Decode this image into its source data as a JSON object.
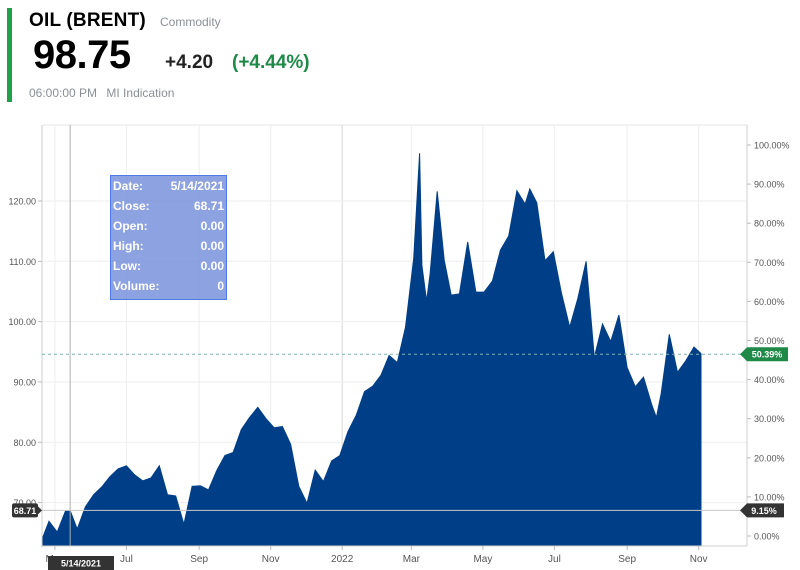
{
  "quote": {
    "name": "OIL (BRENT)",
    "type": "Commodity",
    "price": "98.75",
    "change": "+4.20",
    "change_pct": "(+4.44%)",
    "time": "06:00:00 PM",
    "indication": "MI Indication",
    "up_color": "#21a04a"
  },
  "tooltip": [
    {
      "key": "Date:",
      "value": "5/14/2021"
    },
    {
      "key": "Close:",
      "value": "68.71"
    },
    {
      "key": "Open:",
      "value": "0.00"
    },
    {
      "key": "High:",
      "value": "0.00"
    },
    {
      "key": "Low:",
      "value": "0.00"
    },
    {
      "key": "Volume:",
      "value": "0"
    }
  ],
  "chart_data": {
    "type": "area",
    "color": "#003f87",
    "yticks_left": [
      "120.00",
      "110.00",
      "100.00",
      "90.00",
      "80.00",
      "70.00"
    ],
    "yticks_right": [
      "100.00%",
      "90.00%",
      "80.00%",
      "70.00%",
      "60.00%",
      "50.00%",
      "40.00%",
      "30.00%",
      "20.00%",
      "10.00%",
      "0.00%"
    ],
    "xticks": [
      "May",
      "Jul",
      "Sep",
      "Nov",
      "2022",
      "Mar",
      "May",
      "Jul",
      "Sep",
      "Nov"
    ],
    "ylim": [
      62.8,
      132.6
    ],
    "crosshair": {
      "date": "5/14/2021",
      "value": 68.71,
      "label_left": "68.71",
      "label_right": "9.15%",
      "label_bottom": "5/14/2021"
    },
    "last_marker": {
      "value": 94.6,
      "label": "50.39%"
    },
    "x": [
      "2021-04-20",
      "2021-04-26",
      "2021-05-03",
      "2021-05-10",
      "2021-05-14",
      "2021-05-20",
      "2021-05-27",
      "2021-06-03",
      "2021-06-10",
      "2021-06-17",
      "2021-06-24",
      "2021-07-01",
      "2021-07-08",
      "2021-07-15",
      "2021-07-22",
      "2021-07-29",
      "2021-08-05",
      "2021-08-12",
      "2021-08-19",
      "2021-08-26",
      "2021-09-02",
      "2021-09-09",
      "2021-09-16",
      "2021-09-23",
      "2021-09-30",
      "2021-10-07",
      "2021-10-14",
      "2021-10-21",
      "2021-10-28",
      "2021-11-04",
      "2021-11-11",
      "2021-11-18",
      "2021-11-25",
      "2021-12-02",
      "2021-12-09",
      "2021-12-16",
      "2021-12-23",
      "2021-12-30",
      "2022-01-06",
      "2022-01-13",
      "2022-01-20",
      "2022-01-27",
      "2022-02-03",
      "2022-02-10",
      "2022-02-17",
      "2022-02-24",
      "2022-03-03",
      "2022-03-08",
      "2022-03-10",
      "2022-03-14",
      "2022-03-17",
      "2022-03-23",
      "2022-03-29",
      "2022-04-04",
      "2022-04-11",
      "2022-04-18",
      "2022-04-25",
      "2022-05-02",
      "2022-05-09",
      "2022-05-16",
      "2022-05-23",
      "2022-05-30",
      "2022-06-06",
      "2022-06-10",
      "2022-06-16",
      "2022-06-23",
      "2022-06-30",
      "2022-07-07",
      "2022-07-14",
      "2022-07-21",
      "2022-07-28",
      "2022-08-04",
      "2022-08-11",
      "2022-08-18",
      "2022-08-25",
      "2022-09-01",
      "2022-09-08",
      "2022-09-15",
      "2022-09-22",
      "2022-09-26",
      "2022-09-30",
      "2022-10-07",
      "2022-10-14",
      "2022-10-21",
      "2022-10-28",
      "2022-11-03"
    ],
    "values": [
      63.9,
      66.9,
      65.1,
      68.6,
      68.7,
      65.6,
      69.3,
      71.3,
      72.6,
      74.3,
      75.6,
      76.1,
      74.6,
      73.6,
      74.1,
      76.1,
      71.3,
      71.1,
      66.4,
      72.7,
      72.8,
      72.1,
      75.3,
      77.8,
      78.3,
      82.1,
      84.1,
      85.8,
      83.9,
      82.4,
      82.6,
      79.7,
      72.7,
      69.9,
      75.4,
      73.5,
      76.9,
      77.8,
      81.8,
      84.5,
      88.4,
      89.3,
      91.1,
      94.4,
      93.2,
      99.1,
      110.5,
      127.9,
      109.3,
      103.4,
      107.9,
      121.6,
      110.2,
      104.4,
      104.6,
      113.2,
      104.9,
      104.9,
      106.7,
      111.9,
      114.2,
      121.7,
      119.5,
      122.0,
      119.7,
      110.1,
      111.6,
      104.7,
      99.1,
      103.9,
      110.0,
      94.1,
      99.6,
      96.7,
      101.1,
      92.4,
      89.2,
      90.8,
      86.2,
      84.1,
      88.0,
      97.9,
      91.6,
      93.5,
      95.8,
      94.7
    ]
  }
}
